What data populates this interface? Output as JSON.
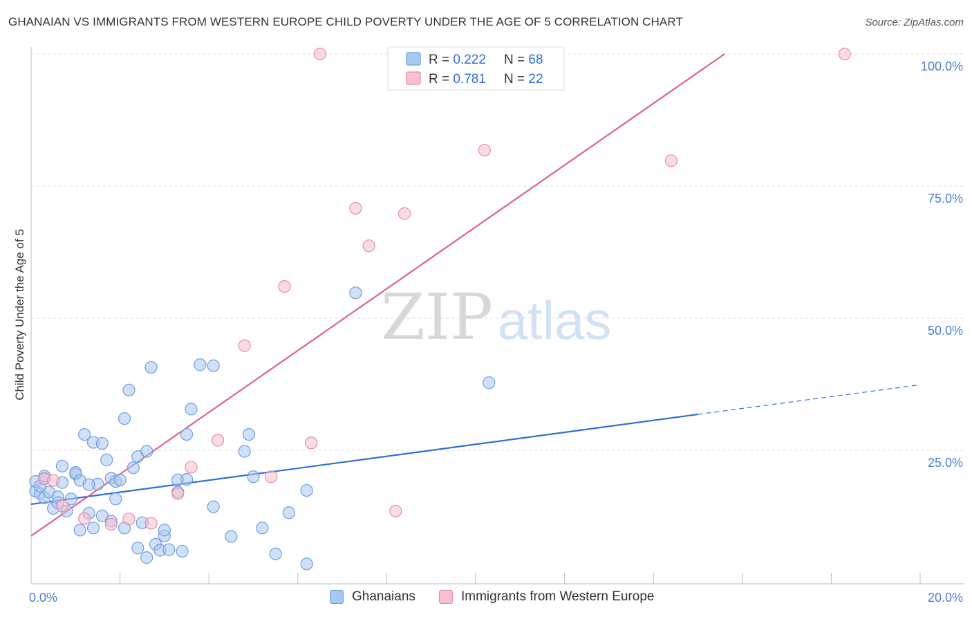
{
  "header": {
    "title": "GHANAIAN VS IMMIGRANTS FROM WESTERN EUROPE CHILD POVERTY UNDER THE AGE OF 5 CORRELATION CHART",
    "source": "Source: ZipAtlas.com"
  },
  "watermark": {
    "part1": "ZIP",
    "part2": "atlas"
  },
  "colors": {
    "blue_fill": "#a9c8f0",
    "blue_stroke": "#6f9ee0",
    "blue_line": "#2f6fd0",
    "pink_fill": "#f7c0d0",
    "pink_stroke": "#e98aa8",
    "pink_line": "#e0608e",
    "tick_label": "#4a7fd4",
    "grid": "#dddddd"
  },
  "chart_data": {
    "type": "scatter",
    "xlabel": "",
    "ylabel": "Child Poverty Under the Age of 5",
    "xlim": [
      0,
      20
    ],
    "ylim": [
      0,
      100
    ],
    "x_tick_labels": [
      {
        "value": 0,
        "label": "0.0%"
      },
      {
        "value": 20,
        "label": "20.0%"
      }
    ],
    "y_tick_labels": [
      {
        "value": 25,
        "label": "25.0%"
      },
      {
        "value": 50,
        "label": "50.0%"
      },
      {
        "value": 75,
        "label": "75.0%"
      },
      {
        "value": 100,
        "label": "100.0%"
      }
    ],
    "legend_stats": [
      {
        "r_label": "R = ",
        "r_value": "0.222",
        "n_label": "N = ",
        "n_value": "68"
      },
      {
        "r_label": "R = ",
        "r_value": "0.781",
        "n_label": "N = ",
        "n_value": "22"
      }
    ],
    "series": [
      {
        "name": "Ghanaians",
        "color": "blue",
        "trend": {
          "x0": 0,
          "y0": 14.8,
          "x1": 15.0,
          "y1": 31.8,
          "dash_x1": 20.0,
          "dash_y1": 37.4
        },
        "points": [
          [
            0.1,
            17.3
          ],
          [
            0.1,
            19.1
          ],
          [
            0.2,
            16.8
          ],
          [
            0.3,
            16.0
          ],
          [
            0.3,
            19.7
          ],
          [
            0.4,
            17.1
          ],
          [
            0.5,
            14.0
          ],
          [
            0.6,
            16.2
          ],
          [
            0.6,
            15.1
          ],
          [
            0.7,
            18.9
          ],
          [
            0.7,
            22.0
          ],
          [
            0.8,
            13.5
          ],
          [
            0.9,
            15.8
          ],
          [
            1.0,
            20.5
          ],
          [
            1.0,
            20.8
          ],
          [
            1.1,
            19.3
          ],
          [
            1.1,
            9.9
          ],
          [
            1.2,
            28.0
          ],
          [
            1.3,
            13.1
          ],
          [
            1.4,
            10.3
          ],
          [
            1.4,
            26.5
          ],
          [
            1.5,
            18.6
          ],
          [
            1.6,
            26.3
          ],
          [
            1.6,
            12.6
          ],
          [
            1.7,
            23.2
          ],
          [
            1.8,
            19.7
          ],
          [
            1.8,
            11.6
          ],
          [
            1.9,
            15.8
          ],
          [
            1.9,
            19.1
          ],
          [
            2.0,
            19.4
          ],
          [
            2.1,
            31.0
          ],
          [
            2.1,
            10.3
          ],
          [
            2.2,
            36.4
          ],
          [
            2.3,
            21.7
          ],
          [
            2.4,
            23.8
          ],
          [
            2.4,
            6.5
          ],
          [
            2.5,
            11.3
          ],
          [
            2.6,
            24.8
          ],
          [
            2.6,
            4.7
          ],
          [
            2.7,
            40.7
          ],
          [
            2.8,
            7.2
          ],
          [
            2.9,
            6.1
          ],
          [
            3.0,
            8.8
          ],
          [
            3.0,
            9.9
          ],
          [
            3.1,
            6.2
          ],
          [
            3.3,
            19.4
          ],
          [
            3.3,
            17.1
          ],
          [
            3.4,
            5.9
          ],
          [
            3.5,
            19.5
          ],
          [
            3.5,
            28.0
          ],
          [
            3.6,
            32.8
          ],
          [
            3.8,
            41.2
          ],
          [
            4.1,
            14.3
          ],
          [
            4.1,
            41.0
          ],
          [
            4.5,
            8.7
          ],
          [
            4.8,
            24.8
          ],
          [
            4.9,
            28.0
          ],
          [
            5.0,
            20.0
          ],
          [
            5.2,
            10.3
          ],
          [
            5.5,
            5.4
          ],
          [
            5.8,
            13.2
          ],
          [
            6.2,
            17.4
          ],
          [
            6.2,
            3.5
          ],
          [
            7.3,
            54.8
          ],
          [
            10.3,
            37.8
          ],
          [
            0.3,
            20.1
          ],
          [
            0.2,
            18.2
          ],
          [
            1.3,
            18.5
          ]
        ]
      },
      {
        "name": "Immigrants from Western Europe",
        "color": "pink",
        "trend": {
          "x0": 0,
          "y0": 8.8,
          "x1": 15.6,
          "y1": 100.0
        },
        "points": [
          [
            0.3,
            19.6
          ],
          [
            0.7,
            14.5
          ],
          [
            1.2,
            12.1
          ],
          [
            1.8,
            11.0
          ],
          [
            2.2,
            12.0
          ],
          [
            2.7,
            11.2
          ],
          [
            3.3,
            16.8
          ],
          [
            3.6,
            21.8
          ],
          [
            4.2,
            26.9
          ],
          [
            4.8,
            44.8
          ],
          [
            5.4,
            20.0
          ],
          [
            5.7,
            56.0
          ],
          [
            6.3,
            26.4
          ],
          [
            6.5,
            100.0
          ],
          [
            7.3,
            70.8
          ],
          [
            7.6,
            63.7
          ],
          [
            8.2,
            13.5
          ],
          [
            8.4,
            69.8
          ],
          [
            10.2,
            81.8
          ],
          [
            14.4,
            79.8
          ],
          [
            18.3,
            100.0
          ],
          [
            0.5,
            19.3
          ]
        ]
      }
    ]
  }
}
